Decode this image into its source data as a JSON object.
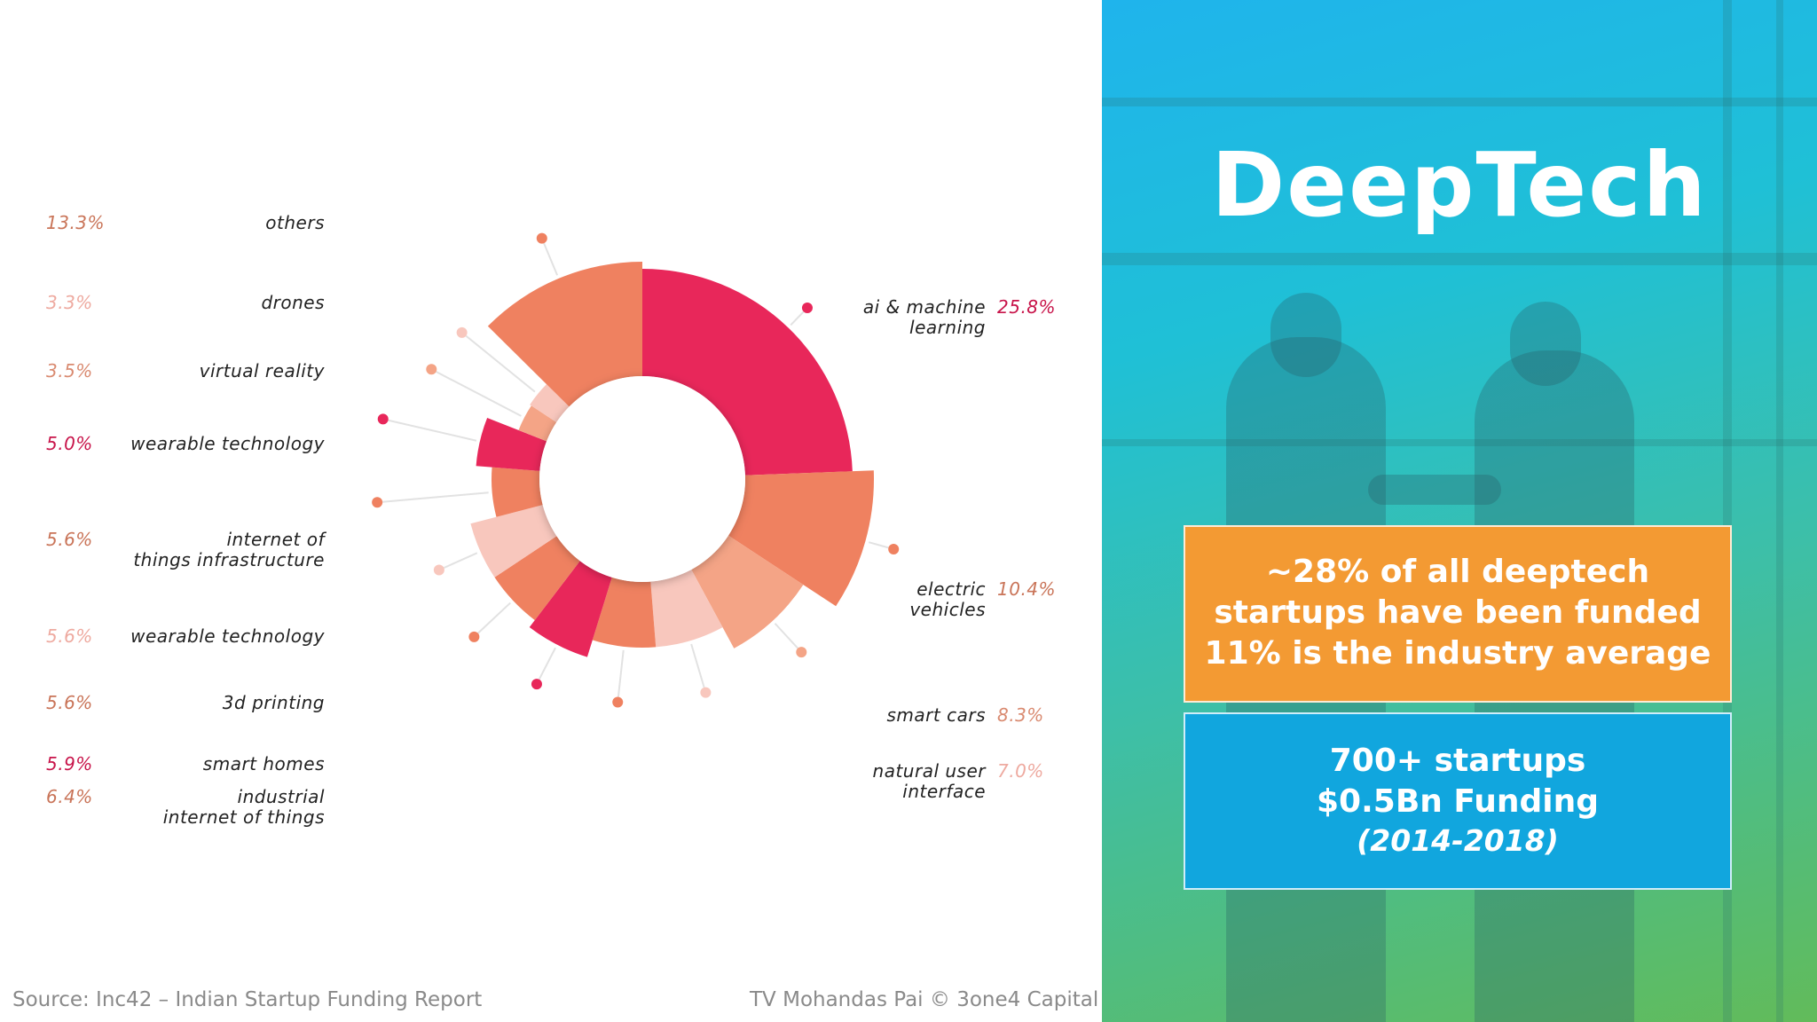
{
  "chart_data": {
    "type": "pie",
    "variant": "radial-pie (variable radius)",
    "segments": [
      {
        "label": "ai & machine learning",
        "value": 25.8,
        "color": "#e8275a"
      },
      {
        "label": "electric vehicles",
        "value": 10.4,
        "color": "#ef8160"
      },
      {
        "label": "smart cars",
        "value": 8.3,
        "color": "#f4a486"
      },
      {
        "label": "natural user interface",
        "value": 7.0,
        "color": "#f8c7bd"
      },
      {
        "label": "industrial internet of things",
        "value": 6.4,
        "color": "#ef8160"
      },
      {
        "label": "smart homes",
        "value": 5.9,
        "color": "#e8275a"
      },
      {
        "label": "3d printing",
        "value": 5.6,
        "color": "#ef8160"
      },
      {
        "label": "wearable technology",
        "value": 5.6,
        "color": "#f8c7bd"
      },
      {
        "label": "internet of things infrastructure",
        "value": 5.6,
        "color": "#ef8160"
      },
      {
        "label": "wearable technology",
        "value": 5.0,
        "color": "#e8275a"
      },
      {
        "label": "virtual reality",
        "value": 3.5,
        "color": "#f4a486"
      },
      {
        "label": "drones",
        "value": 3.3,
        "color": "#f8c7bd"
      },
      {
        "label": "others",
        "value": 13.3,
        "color": "#ef8160"
      }
    ],
    "left_labels": [
      {
        "pct": "13.3%",
        "lines": [
          "others"
        ],
        "color": "#c97458"
      },
      {
        "pct": "3.3%",
        "lines": [
          "drones"
        ],
        "color": "#eeaaa0"
      },
      {
        "pct": "3.5%",
        "lines": [
          "virtual reality"
        ],
        "color": "#d98a70"
      },
      {
        "pct": "5.0%",
        "lines": [
          "wearable technology"
        ],
        "color": "#c8144a"
      },
      {
        "pct": "5.6%",
        "lines": [
          "internet of",
          "things infrastructure"
        ],
        "color": "#c97458"
      },
      {
        "pct": "5.6%",
        "lines": [
          "wearable technology"
        ],
        "color": "#eeaaa0"
      },
      {
        "pct": "5.6%",
        "lines": [
          "3d printing"
        ],
        "color": "#c97458"
      },
      {
        "pct": "5.9%",
        "lines": [
          "smart homes"
        ],
        "color": "#c8144a"
      },
      {
        "pct": "6.4%",
        "lines": [
          "industrial",
          "internet of things"
        ],
        "color": "#c97458"
      }
    ],
    "right_labels": [
      {
        "pct": "25.8%",
        "lines": [
          "ai & machine",
          "learning"
        ],
        "color": "#c8144a"
      },
      {
        "pct": "10.4%",
        "lines": [
          "electric",
          "vehicles"
        ],
        "color": "#c97458"
      },
      {
        "pct": "8.3%",
        "lines": [
          "smart cars"
        ],
        "color": "#d98a70"
      },
      {
        "pct": "7.0%",
        "lines": [
          "natural user",
          "interface"
        ],
        "color": "#eeaaa0"
      }
    ]
  },
  "footer": {
    "source": "Source: Inc42 – Indian Startup Funding Report",
    "credit": "TV Mohandas Pai © 3one4 Capital"
  },
  "panel": {
    "title": "DeepTech",
    "box1": {
      "line1": "~28% of all deeptech",
      "line2": "startups have been funded",
      "line3": "11% is the industry average",
      "color": "#f39a33"
    },
    "box2": {
      "line1": "700+ startups",
      "line2": "$0.5Bn Funding",
      "line3": "(2014-2018)",
      "color": "#11a6de"
    }
  }
}
